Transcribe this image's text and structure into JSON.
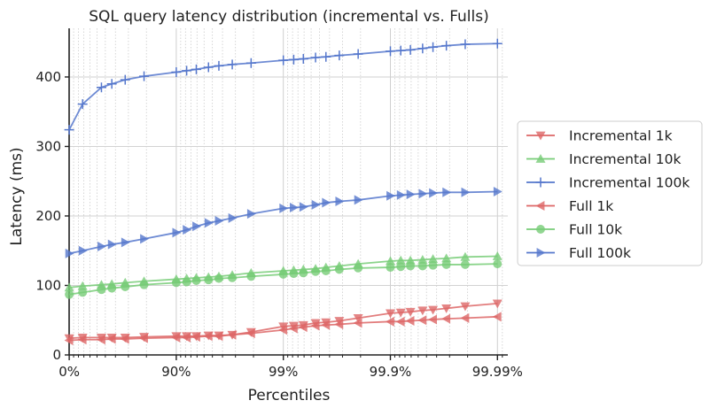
{
  "chart_data": {
    "type": "line",
    "title": "SQL query latency distribution (incremental vs. Fulls)",
    "xlabel": "Percentiles",
    "ylabel": "Latency (ms)",
    "x_scale": "log-nines",
    "x_ticks": [
      {
        "p": 0,
        "label": "0%"
      },
      {
        "p": 90,
        "label": "90%"
      },
      {
        "p": 99,
        "label": "99%"
      },
      {
        "p": 99.9,
        "label": "99.9%"
      },
      {
        "p": 99.99,
        "label": "99.99%"
      }
    ],
    "xlim": [
      -0.2,
      99.992
    ],
    "ylim": [
      0,
      470
    ],
    "y_ticks": [
      0,
      100,
      200,
      300,
      400
    ],
    "grid": true,
    "legend_position": "right",
    "series": [
      {
        "name": "Incremental 1k",
        "color": "#dd6666",
        "marker": "triangle-down",
        "points": [
          [
            0,
            24
          ],
          [
            25,
            25
          ],
          [
            50,
            25
          ],
          [
            60,
            25
          ],
          [
            70,
            25
          ],
          [
            80,
            26
          ],
          [
            90,
            27
          ],
          [
            92,
            27
          ],
          [
            93.5,
            27
          ],
          [
            95,
            28
          ],
          [
            96,
            28
          ],
          [
            97,
            29
          ],
          [
            98,
            33
          ],
          [
            99,
            41
          ],
          [
            99.2,
            42
          ],
          [
            99.35,
            43
          ],
          [
            99.5,
            46
          ],
          [
            99.6,
            47
          ],
          [
            99.7,
            49
          ],
          [
            99.8,
            53
          ],
          [
            99.9,
            60
          ],
          [
            99.92,
            61
          ],
          [
            99.935,
            62
          ],
          [
            99.95,
            64
          ],
          [
            99.96,
            65
          ],
          [
            99.97,
            67
          ],
          [
            99.98,
            70
          ],
          [
            99.99,
            74
          ]
        ]
      },
      {
        "name": "Incremental 10k",
        "color": "#77cc77",
        "marker": "triangle-up",
        "points": [
          [
            0,
            97
          ],
          [
            25,
            99
          ],
          [
            50,
            101
          ],
          [
            60,
            102
          ],
          [
            70,
            104
          ],
          [
            80,
            106
          ],
          [
            90,
            109
          ],
          [
            92,
            110
          ],
          [
            93.5,
            111
          ],
          [
            95,
            112
          ],
          [
            96,
            113
          ],
          [
            97,
            115
          ],
          [
            98,
            118
          ],
          [
            99,
            121
          ],
          [
            99.2,
            122
          ],
          [
            99.35,
            123
          ],
          [
            99.5,
            124
          ],
          [
            99.6,
            126
          ],
          [
            99.7,
            128
          ],
          [
            99.8,
            131
          ],
          [
            99.9,
            135
          ],
          [
            99.92,
            136
          ],
          [
            99.935,
            136
          ],
          [
            99.95,
            137
          ],
          [
            99.96,
            138
          ],
          [
            99.97,
            139
          ],
          [
            99.98,
            141
          ],
          [
            99.99,
            142
          ]
        ]
      },
      {
        "name": "Incremental 100k",
        "color": "#5577cc",
        "marker": "plus",
        "points": [
          [
            0,
            324
          ],
          [
            25,
            361
          ],
          [
            50,
            385
          ],
          [
            60,
            390
          ],
          [
            70,
            396
          ],
          [
            80,
            401
          ],
          [
            90,
            407
          ],
          [
            92,
            409
          ],
          [
            93.5,
            411
          ],
          [
            95,
            414
          ],
          [
            96,
            416
          ],
          [
            97,
            418
          ],
          [
            98,
            420
          ],
          [
            99,
            424
          ],
          [
            99.2,
            425
          ],
          [
            99.35,
            426
          ],
          [
            99.5,
            428
          ],
          [
            99.6,
            429
          ],
          [
            99.7,
            431
          ],
          [
            99.8,
            433
          ],
          [
            99.9,
            437
          ],
          [
            99.92,
            438
          ],
          [
            99.935,
            439
          ],
          [
            99.95,
            441
          ],
          [
            99.96,
            443
          ],
          [
            99.97,
            445
          ],
          [
            99.98,
            447
          ],
          [
            99.99,
            448
          ]
        ]
      },
      {
        "name": "Full 1k",
        "color": "#dd6666",
        "marker": "triangle-left",
        "points": [
          [
            0,
            21
          ],
          [
            25,
            22
          ],
          [
            50,
            22
          ],
          [
            60,
            23
          ],
          [
            70,
            23
          ],
          [
            80,
            24
          ],
          [
            90,
            25
          ],
          [
            92,
            25
          ],
          [
            93.5,
            26
          ],
          [
            95,
            27
          ],
          [
            96,
            27
          ],
          [
            97,
            29
          ],
          [
            98,
            31
          ],
          [
            99,
            36
          ],
          [
            99.2,
            38
          ],
          [
            99.35,
            40
          ],
          [
            99.5,
            42
          ],
          [
            99.6,
            43
          ],
          [
            99.7,
            44
          ],
          [
            99.8,
            46
          ],
          [
            99.9,
            48
          ],
          [
            99.92,
            48
          ],
          [
            99.935,
            49
          ],
          [
            99.95,
            50
          ],
          [
            99.96,
            51
          ],
          [
            99.97,
            52
          ],
          [
            99.98,
            53
          ],
          [
            99.99,
            55
          ]
        ]
      },
      {
        "name": "Full 10k",
        "color": "#77cc77",
        "marker": "circle",
        "points": [
          [
            0,
            87
          ],
          [
            25,
            90
          ],
          [
            50,
            94
          ],
          [
            60,
            96
          ],
          [
            70,
            98
          ],
          [
            80,
            101
          ],
          [
            90,
            104
          ],
          [
            92,
            105
          ],
          [
            93.5,
            107
          ],
          [
            95,
            108
          ],
          [
            96,
            110
          ],
          [
            97,
            111
          ],
          [
            98,
            113
          ],
          [
            99,
            116
          ],
          [
            99.2,
            117
          ],
          [
            99.35,
            118
          ],
          [
            99.5,
            120
          ],
          [
            99.6,
            121
          ],
          [
            99.7,
            123
          ],
          [
            99.8,
            125
          ],
          [
            99.9,
            126
          ],
          [
            99.92,
            127
          ],
          [
            99.935,
            128
          ],
          [
            99.95,
            128
          ],
          [
            99.96,
            129
          ],
          [
            99.97,
            130
          ],
          [
            99.98,
            130
          ],
          [
            99.99,
            131
          ]
        ]
      },
      {
        "name": "Full 100k",
        "color": "#5577cc",
        "marker": "triangle-right",
        "points": [
          [
            0,
            146
          ],
          [
            25,
            150
          ],
          [
            50,
            156
          ],
          [
            60,
            159
          ],
          [
            70,
            162
          ],
          [
            80,
            167
          ],
          [
            90,
            176
          ],
          [
            92,
            180
          ],
          [
            93.5,
            185
          ],
          [
            95,
            190
          ],
          [
            96,
            193
          ],
          [
            97,
            197
          ],
          [
            98,
            203
          ],
          [
            99,
            211
          ],
          [
            99.2,
            212
          ],
          [
            99.35,
            213
          ],
          [
            99.5,
            216
          ],
          [
            99.6,
            219
          ],
          [
            99.7,
            221
          ],
          [
            99.8,
            223
          ],
          [
            99.9,
            229
          ],
          [
            99.92,
            230
          ],
          [
            99.935,
            231
          ],
          [
            99.95,
            232
          ],
          [
            99.96,
            233
          ],
          [
            99.97,
            234
          ],
          [
            99.98,
            234
          ],
          [
            99.99,
            235
          ]
        ]
      }
    ]
  }
}
